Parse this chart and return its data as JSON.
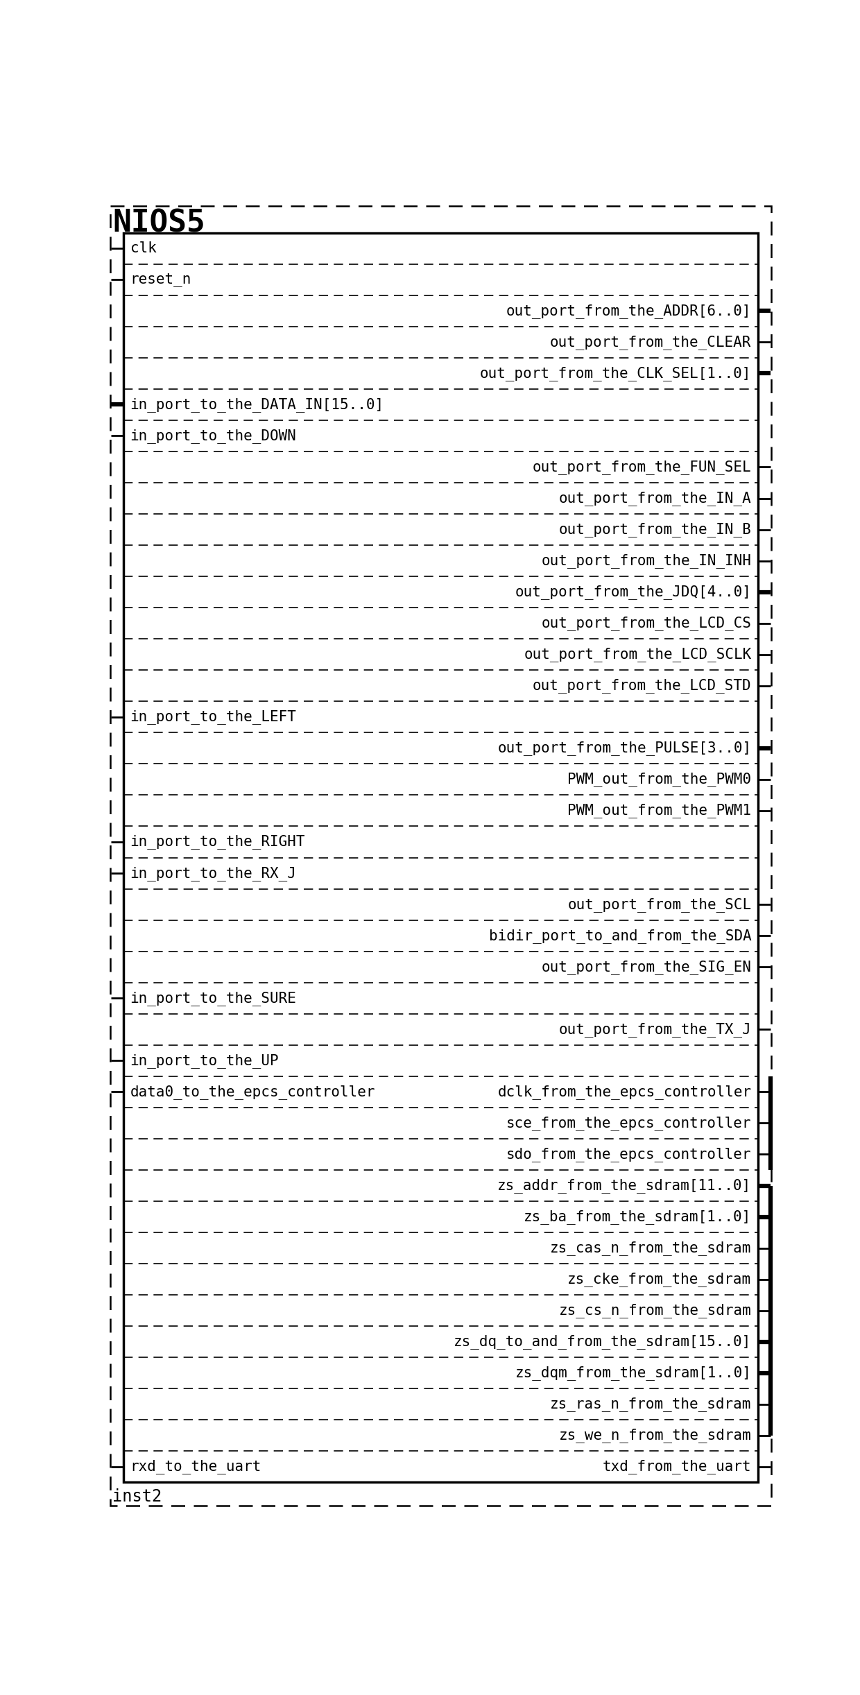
{
  "title": "NIOS5",
  "instance": "inst2",
  "fig_w": 12.4,
  "fig_h": 24.44,
  "dpi": 100,
  "port_rows": [
    {
      "left": "clk",
      "right": null,
      "left_bus": false,
      "right_bus": false,
      "sep_below": false
    },
    {
      "left": "reset_n",
      "right": null,
      "left_bus": false,
      "right_bus": false,
      "sep_below": true
    },
    {
      "left": null,
      "right": "out_port_from_the_ADDR[6..0]",
      "left_bus": false,
      "right_bus": true,
      "sep_below": true
    },
    {
      "left": null,
      "right": "out_port_from_the_CLEAR",
      "left_bus": false,
      "right_bus": false,
      "sep_below": true
    },
    {
      "left": null,
      "right": "out_port_from_the_CLK_SEL[1..0]",
      "left_bus": false,
      "right_bus": true,
      "sep_below": true
    },
    {
      "left": "in_port_to_the_DATA_IN[15..0]",
      "right": null,
      "left_bus": true,
      "right_bus": false,
      "sep_below": true
    },
    {
      "left": "in_port_to_the_DOWN",
      "right": null,
      "left_bus": false,
      "right_bus": false,
      "sep_below": true
    },
    {
      "left": null,
      "right": "out_port_from_the_FUN_SEL",
      "left_bus": false,
      "right_bus": false,
      "sep_below": true
    },
    {
      "left": null,
      "right": "out_port_from_the_IN_A",
      "left_bus": false,
      "right_bus": false,
      "sep_below": true
    },
    {
      "left": null,
      "right": "out_port_from_the_IN_B",
      "left_bus": false,
      "right_bus": false,
      "sep_below": true
    },
    {
      "left": null,
      "right": "out_port_from_the_IN_INH",
      "left_bus": false,
      "right_bus": false,
      "sep_below": true
    },
    {
      "left": null,
      "right": "out_port_from_the_JDQ[4..0]",
      "left_bus": false,
      "right_bus": true,
      "sep_below": true
    },
    {
      "left": null,
      "right": "out_port_from_the_LCD_CS",
      "left_bus": false,
      "right_bus": false,
      "sep_below": true
    },
    {
      "left": null,
      "right": "out_port_from_the_LCD_SCLK",
      "left_bus": false,
      "right_bus": false,
      "sep_below": true
    },
    {
      "left": null,
      "right": "out_port_from_the_LCD_STD",
      "left_bus": false,
      "right_bus": false,
      "sep_below": true
    },
    {
      "left": "in_port_to_the_LEFT",
      "right": null,
      "left_bus": false,
      "right_bus": false,
      "sep_below": true
    },
    {
      "left": null,
      "right": "out_port_from_the_PULSE[3..0]",
      "left_bus": false,
      "right_bus": true,
      "sep_below": true
    },
    {
      "left": null,
      "right": "PWM_out_from_the_PWM0",
      "left_bus": false,
      "right_bus": false,
      "sep_below": true
    },
    {
      "left": null,
      "right": "PWM_out_from_the_PWM1",
      "left_bus": false,
      "right_bus": false,
      "sep_below": true
    },
    {
      "left": "in_port_to_the_RIGHT",
      "right": null,
      "left_bus": false,
      "right_bus": false,
      "sep_below": true
    },
    {
      "left": "in_port_to_the_RX_J",
      "right": null,
      "left_bus": false,
      "right_bus": false,
      "sep_below": true
    },
    {
      "left": null,
      "right": "out_port_from_the_SCL",
      "left_bus": false,
      "right_bus": false,
      "sep_below": true
    },
    {
      "left": null,
      "right": "bidir_port_to_and_from_the_SDA",
      "left_bus": false,
      "right_bus": false,
      "sep_below": true
    },
    {
      "left": null,
      "right": "out_port_from_the_SIG_EN",
      "left_bus": false,
      "right_bus": false,
      "sep_below": true
    },
    {
      "left": "in_port_to_the_SURE",
      "right": null,
      "left_bus": false,
      "right_bus": false,
      "sep_below": true
    },
    {
      "left": null,
      "right": "out_port_from_the_TX_J",
      "left_bus": false,
      "right_bus": false,
      "sep_below": true
    },
    {
      "left": "in_port_to_the_UP",
      "right": null,
      "left_bus": false,
      "right_bus": false,
      "sep_below": true
    },
    {
      "left": "data0_to_the_epcs_controller",
      "right": "dclk_from_the_epcs_controller",
      "left_bus": false,
      "right_bus": false,
      "sep_below": false
    },
    {
      "left": null,
      "right": "sce_from_the_epcs_controller",
      "left_bus": false,
      "right_bus": false,
      "sep_below": false
    },
    {
      "left": null,
      "right": "sdo_from_the_epcs_controller",
      "left_bus": false,
      "right_bus": false,
      "sep_below": true
    },
    {
      "left": null,
      "right": "zs_addr_from_the_sdram[11..0]",
      "left_bus": false,
      "right_bus": true,
      "sep_below": false
    },
    {
      "left": null,
      "right": "zs_ba_from_the_sdram[1..0]",
      "left_bus": false,
      "right_bus": true,
      "sep_below": false
    },
    {
      "left": null,
      "right": "zs_cas_n_from_the_sdram",
      "left_bus": false,
      "right_bus": false,
      "sep_below": false
    },
    {
      "left": null,
      "right": "zs_cke_from_the_sdram",
      "left_bus": false,
      "right_bus": false,
      "sep_below": false
    },
    {
      "left": null,
      "right": "zs_cs_n_from_the_sdram",
      "left_bus": false,
      "right_bus": false,
      "sep_below": false
    },
    {
      "left": null,
      "right": "zs_dq_to_and_from_the_sdram[15..0]",
      "left_bus": false,
      "right_bus": true,
      "sep_below": false
    },
    {
      "left": null,
      "right": "zs_dqm_from_the_sdram[1..0]",
      "left_bus": false,
      "right_bus": true,
      "sep_below": false
    },
    {
      "left": null,
      "right": "zs_ras_n_from_the_sdram",
      "left_bus": false,
      "right_bus": false,
      "sep_below": false
    },
    {
      "left": null,
      "right": "zs_we_n_from_the_sdram",
      "left_bus": false,
      "right_bus": false,
      "sep_below": true
    },
    {
      "left": "rxd_to_the_uart",
      "right": "txd_from_the_uart",
      "left_bus": false,
      "right_bus": false,
      "sep_below": false
    }
  ],
  "header_rows": 2,
  "epcs_group_rows": [
    27,
    28,
    29
  ],
  "sdram_group_rows": [
    30,
    31,
    32,
    33,
    34,
    35,
    36,
    37,
    38
  ]
}
